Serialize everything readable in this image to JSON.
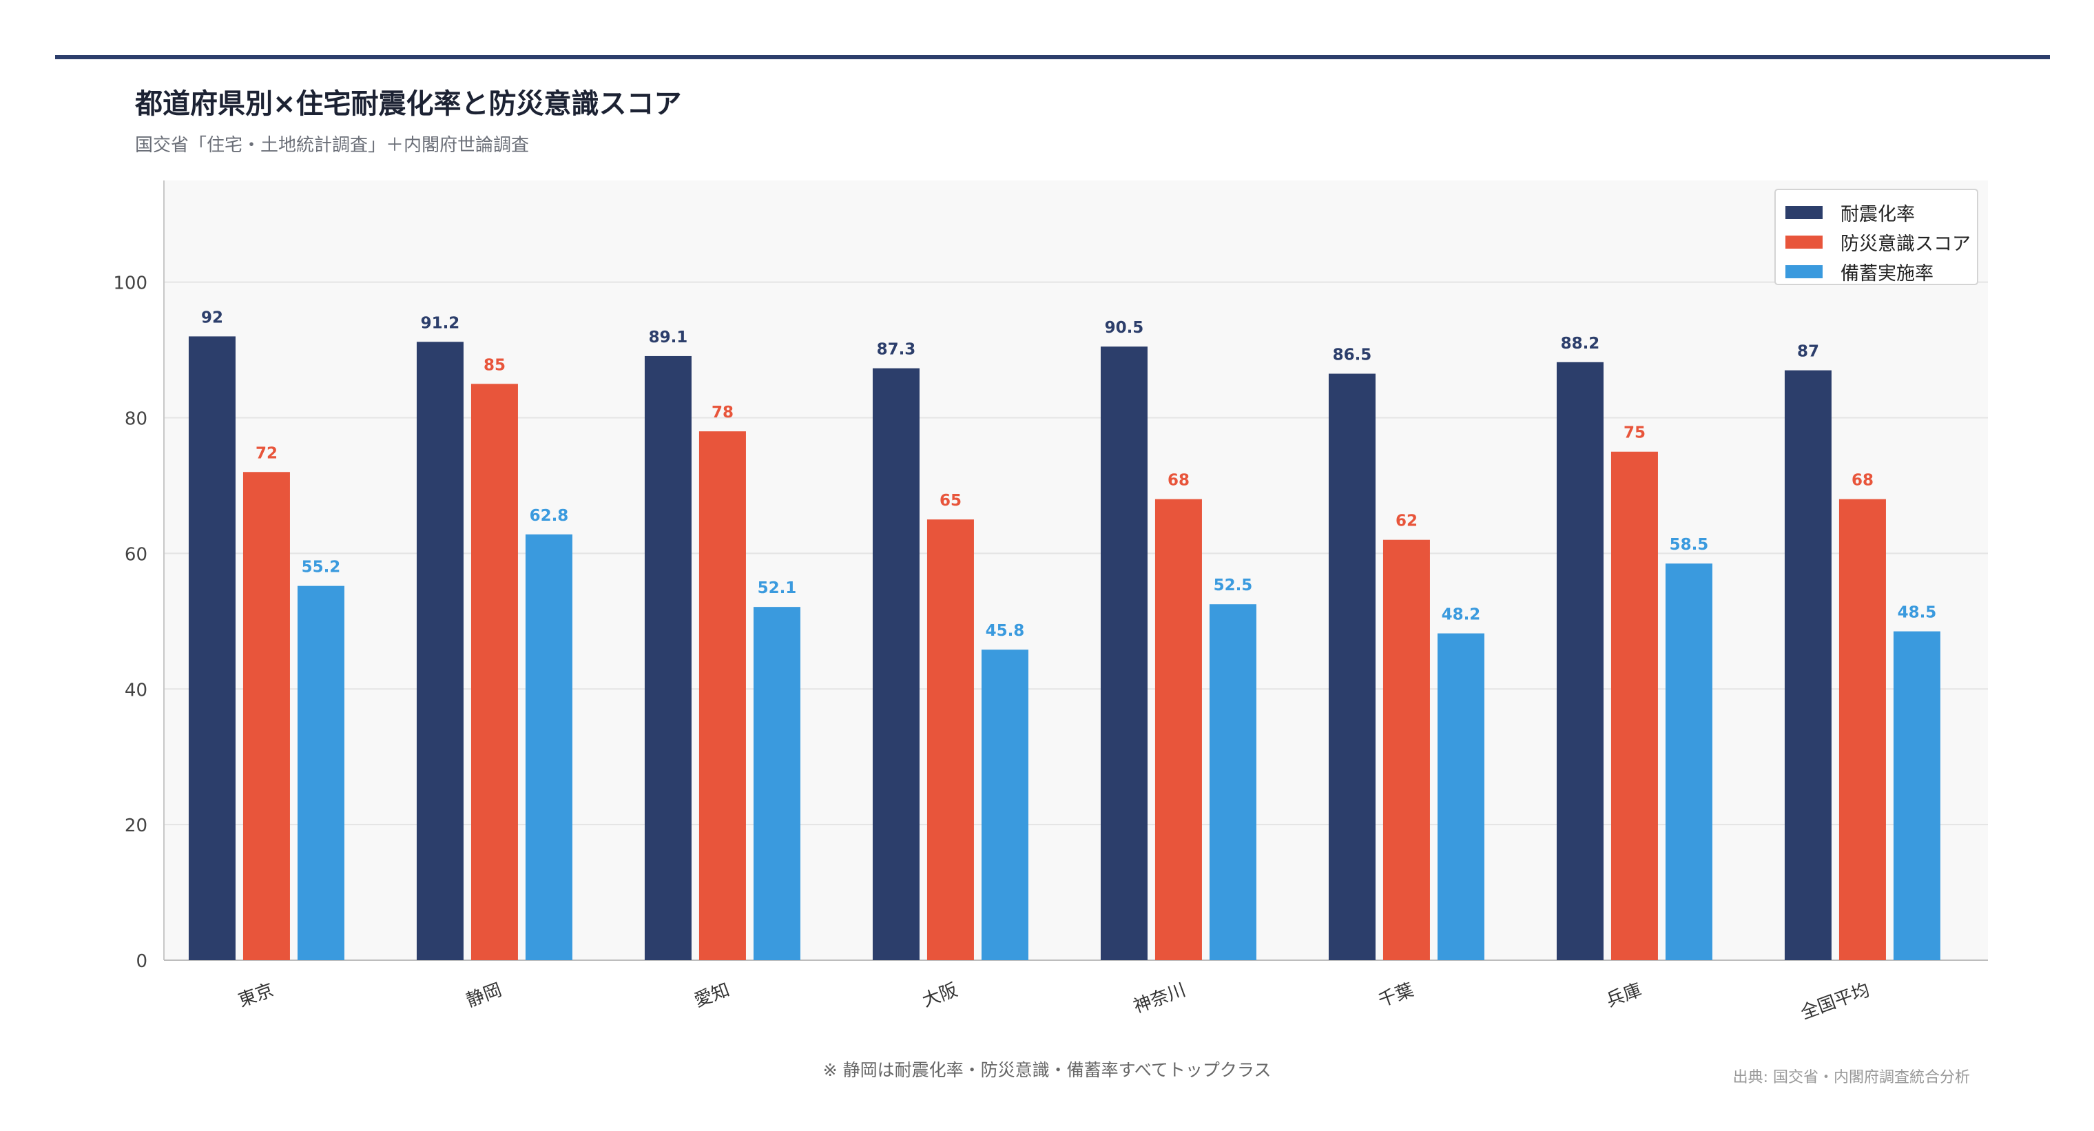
{
  "header": {
    "title": "都道府県別×住宅耐震化率と防災意識スコア",
    "subtitle": "国交省「住宅・土地統計調査」＋内閣府世論調査"
  },
  "footer": {
    "note": "※ 静岡は耐震化率・防災意識・備蓄率すべてトップクラス",
    "source": "出典: 国交省・内閣府調査統合分析"
  },
  "chart_data": {
    "type": "bar",
    "categories": [
      "東京",
      "静岡",
      "愛知",
      "大阪",
      "神奈川",
      "千葉",
      "兵庫",
      "全国平均"
    ],
    "series": [
      {
        "name": "耐震化率",
        "color": "#2c3e6b",
        "values": [
          92,
          91.2,
          89.1,
          87.3,
          90.5,
          86.5,
          88.2,
          87
        ]
      },
      {
        "name": "防災意識スコア",
        "color": "#e8553b",
        "values": [
          72,
          85,
          78,
          65,
          68,
          62,
          75,
          68
        ]
      },
      {
        "name": "備蓄実施率",
        "color": "#3a9ade",
        "values": [
          55.2,
          62.8,
          52.1,
          45.8,
          52.5,
          48.2,
          58.5,
          48.5
        ]
      }
    ],
    "ylim": [
      0,
      115
    ],
    "yticks": [
      0,
      20,
      40,
      60,
      80,
      100
    ],
    "grid": true,
    "legend_position": "top-right",
    "data_labels": true,
    "xlabel": "",
    "ylabel": ""
  }
}
